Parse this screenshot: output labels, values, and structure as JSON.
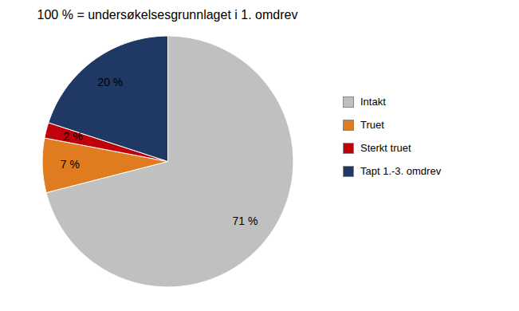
{
  "chart_data": {
    "type": "pie",
    "title": "100 % = undersøkelsesgrunnlaget i 1. omdrev",
    "categories": [
      "Intakt",
      "Truet",
      "Sterkt truet",
      "Tapt 1.-3. omdrev"
    ],
    "values": [
      71,
      7,
      2,
      20
    ],
    "value_labels": [
      "71 %",
      "7 %",
      "2 %",
      "20 %"
    ],
    "colors": [
      "#c0c0c0",
      "#e07b20",
      "#c0000b",
      "#1f3864"
    ],
    "data_labels": true,
    "legend": "right"
  }
}
